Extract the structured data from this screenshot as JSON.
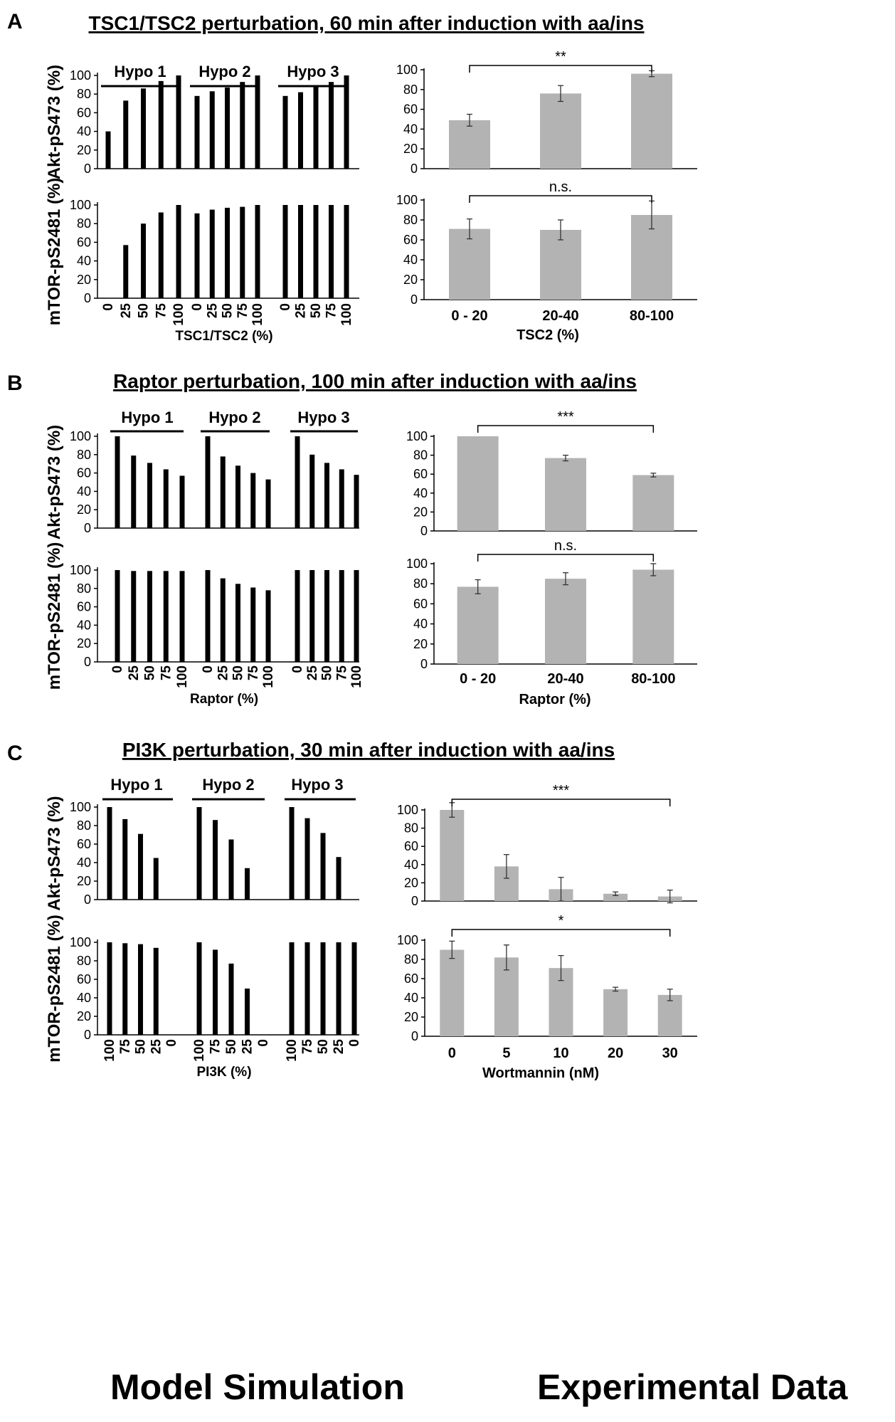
{
  "panels": [
    {
      "letter": "A",
      "title": "TSC1/TSC2 perturbation, 60 min after induction with aa/ins",
      "simulation": {
        "xlabel": "TSC1/TSC2 (%)",
        "groups": [
          "Hypo 1",
          "Hypo 2",
          "Hypo 3"
        ],
        "tick_labels": [
          "0",
          "25",
          "50",
          "75",
          "100"
        ]
      },
      "experimental": {
        "xlabel": "TSC2 (%)",
        "categories": [
          "0 - 20",
          "20-40",
          "80-100"
        ]
      }
    },
    {
      "letter": "B",
      "title": "Raptor perturbation, 100 min after induction with aa/ins",
      "simulation": {
        "xlabel": "Raptor (%)",
        "groups": [
          "Hypo 1",
          "Hypo 2",
          "Hypo 3"
        ],
        "tick_labels": [
          "0",
          "25",
          "50",
          "75",
          "100"
        ]
      },
      "experimental": {
        "xlabel": "Raptor (%)",
        "categories": [
          "0 - 20",
          "20-40",
          "80-100"
        ]
      }
    },
    {
      "letter": "C",
      "title": "PI3K perturbation, 30 min after induction with aa/ins",
      "simulation": {
        "xlabel": "PI3K (%)",
        "groups": [
          "Hypo 1",
          "Hypo 2",
          "Hypo 3"
        ],
        "tick_labels": [
          "100",
          "75",
          "50",
          "25",
          "0"
        ]
      },
      "experimental": {
        "xlabel": "Wortmannin (nM)",
        "categories": [
          "0",
          "5",
          "10",
          "20",
          "30"
        ]
      }
    }
  ],
  "footer": {
    "left": "Model Simulation",
    "right": "Experimental Data"
  },
  "colors": {
    "simulation_bar": "#000000",
    "experimental_bar": "#b3b3b3",
    "axis": "#000000"
  },
  "chart_data": [
    {
      "panel": "A",
      "row": "Akt-pS473",
      "type": "bar",
      "ylabel": "Akt-pS473 (%)",
      "ylim": [
        0,
        100
      ],
      "yticks": [
        0,
        20,
        40,
        60,
        80,
        100
      ],
      "simulation": {
        "series": [
          {
            "name": "Hypo 1",
            "values": [
              40,
              73,
              86,
              94,
              100
            ]
          },
          {
            "name": "Hypo 2",
            "values": [
              78,
              83,
              87,
              93,
              100
            ]
          },
          {
            "name": "Hypo 3",
            "values": [
              78,
              82,
              88,
              93,
              100
            ]
          }
        ]
      },
      "experimental": {
        "values": [
          49,
          76,
          96
        ],
        "errors": [
          6,
          8,
          3
        ],
        "significance": {
          "from": 0,
          "to": 2,
          "label": "**"
        }
      }
    },
    {
      "panel": "A",
      "row": "mTOR-pS2481",
      "type": "bar",
      "ylabel": "mTOR-pS2481 (%)",
      "ylim": [
        0,
        100
      ],
      "yticks": [
        0,
        20,
        40,
        60,
        80,
        100
      ],
      "simulation": {
        "series": [
          {
            "name": "Hypo 1",
            "values": [
              0,
              57,
              80,
              92,
              100
            ]
          },
          {
            "name": "Hypo 2",
            "values": [
              91,
              95,
              97,
              98,
              100
            ]
          },
          {
            "name": "Hypo 3",
            "values": [
              100,
              100,
              100,
              100,
              100
            ]
          }
        ]
      },
      "experimental": {
        "values": [
          71,
          70,
          85
        ],
        "errors": [
          10,
          10,
          14
        ],
        "significance": {
          "from": 0,
          "to": 2,
          "label": "n.s."
        }
      }
    },
    {
      "panel": "B",
      "row": "Akt-pS473",
      "type": "bar",
      "ylabel": "Akt-pS473 (%)",
      "ylim": [
        0,
        100
      ],
      "yticks": [
        0,
        20,
        40,
        60,
        80,
        100
      ],
      "simulation": {
        "series": [
          {
            "name": "Hypo 1",
            "values": [
              100,
              79,
              71,
              64,
              57
            ]
          },
          {
            "name": "Hypo 2",
            "values": [
              100,
              78,
              68,
              60,
              53
            ]
          },
          {
            "name": "Hypo 3",
            "values": [
              100,
              80,
              71,
              64,
              58
            ]
          }
        ]
      },
      "experimental": {
        "values": [
          100,
          77,
          59
        ],
        "errors": [
          0,
          3,
          2
        ],
        "significance": {
          "from": 0,
          "to": 2,
          "label": "***"
        }
      }
    },
    {
      "panel": "B",
      "row": "mTOR-pS2481",
      "type": "bar",
      "ylabel": "mTOR-pS2481 (%)",
      "ylim": [
        0,
        100
      ],
      "yticks": [
        0,
        20,
        40,
        60,
        80,
        100
      ],
      "simulation": {
        "series": [
          {
            "name": "Hypo 1",
            "values": [
              100,
              99,
              99,
              99,
              99
            ]
          },
          {
            "name": "Hypo 2",
            "values": [
              100,
              91,
              85,
              81,
              78
            ]
          },
          {
            "name": "Hypo 3",
            "values": [
              100,
              100,
              100,
              100,
              100
            ]
          }
        ]
      },
      "experimental": {
        "values": [
          77,
          85,
          94
        ],
        "errors": [
          7,
          6,
          6
        ],
        "significance": {
          "from": 0,
          "to": 2,
          "label": "n.s."
        }
      }
    },
    {
      "panel": "C",
      "row": "Akt-pS473",
      "type": "bar",
      "ylabel": "Akt-pS473 (%)",
      "ylim": [
        0,
        100
      ],
      "yticks": [
        0,
        20,
        40,
        60,
        80,
        100
      ],
      "simulation": {
        "series": [
          {
            "name": "Hypo 1",
            "values": [
              100,
              87,
              71,
              45,
              0
            ]
          },
          {
            "name": "Hypo 2",
            "values": [
              100,
              86,
              65,
              34,
              0
            ]
          },
          {
            "name": "Hypo 3",
            "values": [
              100,
              88,
              72,
              46,
              0
            ]
          }
        ]
      },
      "experimental": {
        "values": [
          100,
          38,
          13,
          8,
          5
        ],
        "errors": [
          8,
          13,
          13,
          2,
          7
        ],
        "significance": {
          "from": 0,
          "to": 4,
          "label": "***"
        }
      }
    },
    {
      "panel": "C",
      "row": "mTOR-pS2481",
      "type": "bar",
      "ylabel": "mTOR-pS2481 (%)",
      "ylim": [
        0,
        100
      ],
      "yticks": [
        0,
        20,
        40,
        60,
        80,
        100
      ],
      "simulation": {
        "series": [
          {
            "name": "Hypo 1",
            "values": [
              100,
              99,
              98,
              94,
              0
            ]
          },
          {
            "name": "Hypo 2",
            "values": [
              100,
              92,
              77,
              50,
              0
            ]
          },
          {
            "name": "Hypo 3",
            "values": [
              100,
              100,
              100,
              100,
              100
            ]
          }
        ]
      },
      "experimental": {
        "values": [
          90,
          82,
          71,
          49,
          43
        ],
        "errors": [
          9,
          13,
          13,
          2,
          6
        ],
        "significance": {
          "from": 0,
          "to": 4,
          "label": "*"
        }
      }
    }
  ]
}
